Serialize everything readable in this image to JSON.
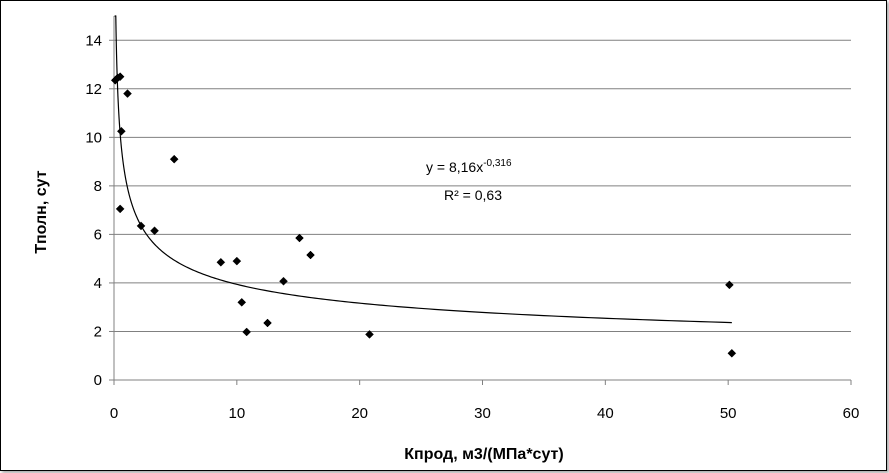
{
  "chart_data": {
    "type": "scatter",
    "xlabel": "Кпрод, м3/(МПа*сут)",
    "ylabel": "Тполн, сут",
    "xlim": [
      0,
      60
    ],
    "ylim": [
      0,
      15
    ],
    "x_ticks": [
      0,
      10,
      20,
      30,
      40,
      50,
      60
    ],
    "y_ticks": [
      0,
      2,
      4,
      6,
      8,
      10,
      12,
      14
    ],
    "grid": "horizontal",
    "legend": "none",
    "marker": "diamond",
    "marker_color": "#000000",
    "points": [
      {
        "x": 0.1,
        "y": 12.35
      },
      {
        "x": 0.3,
        "y": 12.45
      },
      {
        "x": 0.5,
        "y": 12.5
      },
      {
        "x": 1.1,
        "y": 11.8
      },
      {
        "x": 0.6,
        "y": 10.25
      },
      {
        "x": 0.5,
        "y": 7.05
      },
      {
        "x": 4.9,
        "y": 9.1
      },
      {
        "x": 2.2,
        "y": 6.35
      },
      {
        "x": 3.3,
        "y": 6.15
      },
      {
        "x": 8.7,
        "y": 4.85
      },
      {
        "x": 10.0,
        "y": 4.9
      },
      {
        "x": 10.4,
        "y": 3.2
      },
      {
        "x": 10.8,
        "y": 1.98
      },
      {
        "x": 12.5,
        "y": 2.35
      },
      {
        "x": 13.8,
        "y": 4.07
      },
      {
        "x": 15.1,
        "y": 5.85
      },
      {
        "x": 16.0,
        "y": 5.15
      },
      {
        "x": 20.8,
        "y": 1.88
      },
      {
        "x": 50.1,
        "y": 3.92
      },
      {
        "x": 50.3,
        "y": 1.1
      }
    ],
    "trendline": {
      "type": "power",
      "coefficient": 8.16,
      "exponent": -0.316,
      "x_range": [
        0.05,
        50.3
      ],
      "equation_prefix": "y = 8,16x",
      "equation_exponent": "-0,316",
      "r_squared_label": "R² = 0,63"
    }
  }
}
